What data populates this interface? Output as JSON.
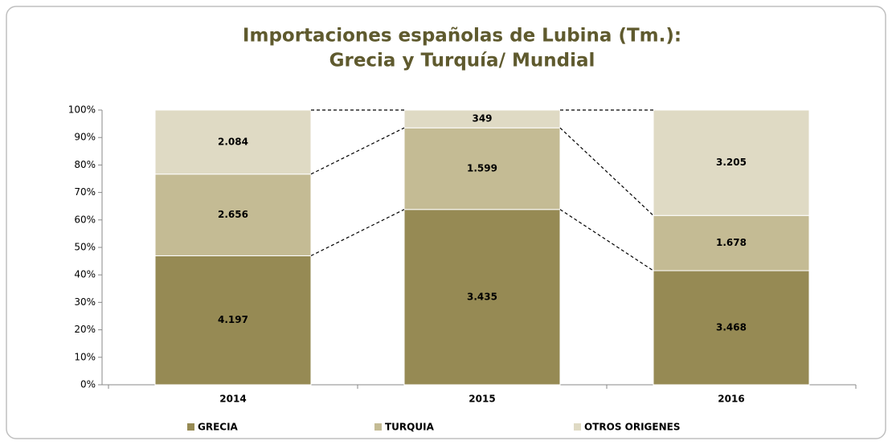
{
  "chart_data": {
    "type": "stacked_percent_bar",
    "title": [
      "Importaciones españolas de Lubina (Tm.):",
      "Grecia y Turquía/ Mundial"
    ],
    "categories": [
      "2014",
      "2015",
      "2016"
    ],
    "series": [
      {
        "name": "GRECIA",
        "color": "#968a54",
        "values": [
          4197,
          3435,
          3468
        ],
        "value_labels": [
          "4.197",
          "3.435",
          "3.468"
        ]
      },
      {
        "name": "TURQUIA",
        "color": "#c4bb94",
        "values": [
          2656,
          1599,
          1678
        ],
        "value_labels": [
          "2.656",
          "1.599",
          "1.678"
        ]
      },
      {
        "name": "OTROS ORIGENES",
        "color": "#dfdac4",
        "values": [
          2084,
          349,
          3205
        ],
        "value_labels": [
          "2.084",
          "349",
          "3.205"
        ]
      }
    ],
    "ylim": [
      0,
      100
    ],
    "yticks": [
      {
        "value": 0,
        "label": "0%"
      },
      {
        "value": 10,
        "label": "10%"
      },
      {
        "value": 20,
        "label": "20%"
      },
      {
        "value": 30,
        "label": "30%"
      },
      {
        "value": 40,
        "label": "40%"
      },
      {
        "value": 50,
        "label": "50%"
      },
      {
        "value": 60,
        "label": "60%"
      },
      {
        "value": 70,
        "label": "70%"
      },
      {
        "value": 80,
        "label": "80%"
      },
      {
        "value": 90,
        "label": "90%"
      },
      {
        "value": 100,
        "label": "100%"
      }
    ],
    "legend": "bottom",
    "connectors": true
  }
}
